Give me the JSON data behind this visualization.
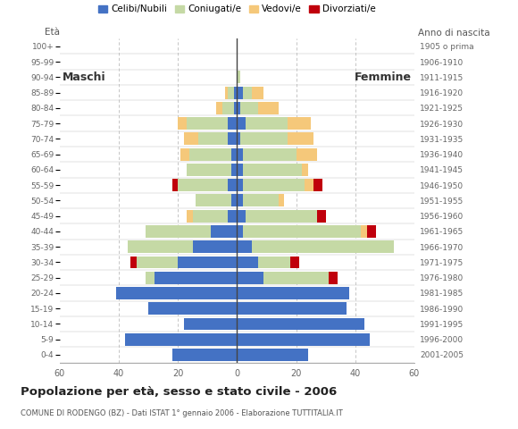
{
  "age_groups": [
    "0-4",
    "5-9",
    "10-14",
    "15-19",
    "20-24",
    "25-29",
    "30-34",
    "35-39",
    "40-44",
    "45-49",
    "50-54",
    "55-59",
    "60-64",
    "65-69",
    "70-74",
    "75-79",
    "80-84",
    "85-89",
    "90-94",
    "95-99",
    "100+"
  ],
  "birth_years": [
    "2001-2005",
    "1996-2000",
    "1991-1995",
    "1986-1990",
    "1981-1985",
    "1976-1980",
    "1971-1975",
    "1966-1970",
    "1961-1965",
    "1956-1960",
    "1951-1955",
    "1946-1950",
    "1941-1945",
    "1936-1940",
    "1931-1935",
    "1926-1930",
    "1921-1925",
    "1916-1920",
    "1911-1915",
    "1906-1910",
    "1905 o prima"
  ],
  "colors": {
    "celibe": "#4472C4",
    "coniugato": "#C5D9A5",
    "vedovo": "#F5C87A",
    "divorziato": "#C0000C"
  },
  "males": {
    "celibe": [
      22,
      38,
      18,
      30,
      41,
      28,
      20,
      15,
      9,
      3,
      2,
      3,
      2,
      2,
      3,
      3,
      1,
      1,
      0,
      0,
      0
    ],
    "coniugato": [
      0,
      0,
      0,
      0,
      0,
      3,
      14,
      22,
      22,
      12,
      12,
      17,
      15,
      14,
      10,
      14,
      4,
      2,
      0,
      0,
      0
    ],
    "vedovo": [
      0,
      0,
      0,
      0,
      0,
      0,
      0,
      0,
      0,
      2,
      0,
      0,
      0,
      3,
      5,
      3,
      2,
      1,
      0,
      0,
      0
    ],
    "divorziato": [
      0,
      0,
      0,
      0,
      0,
      0,
      2,
      0,
      0,
      0,
      0,
      2,
      0,
      0,
      0,
      0,
      0,
      0,
      0,
      0,
      0
    ]
  },
  "females": {
    "celibe": [
      24,
      45,
      43,
      37,
      38,
      9,
      7,
      5,
      2,
      3,
      2,
      2,
      2,
      2,
      1,
      3,
      1,
      2,
      0,
      0,
      0
    ],
    "coniugato": [
      0,
      0,
      0,
      0,
      0,
      22,
      11,
      48,
      40,
      24,
      12,
      21,
      20,
      18,
      16,
      14,
      6,
      3,
      1,
      0,
      0
    ],
    "vedovo": [
      0,
      0,
      0,
      0,
      0,
      0,
      0,
      0,
      2,
      0,
      2,
      3,
      2,
      7,
      9,
      8,
      7,
      4,
      0,
      0,
      0
    ],
    "divorziato": [
      0,
      0,
      0,
      0,
      0,
      3,
      3,
      0,
      3,
      3,
      0,
      3,
      0,
      0,
      0,
      0,
      0,
      0,
      0,
      0,
      0
    ]
  },
  "title": "Popolazione per età, sesso e stato civile - 2006",
  "subtitle": "COMUNE DI RODENGO (BZ) - Dati ISTAT 1° gennaio 2006 - Elaborazione TUTTITALIA.IT",
  "label_left": "Maschi",
  "label_right": "Femmine",
  "eta_label": "Età",
  "anno_label": "Anno di nascita",
  "xlim": 60,
  "bg_color": "#FFFFFF",
  "grid_color": "#BBBBBB",
  "legend_labels": [
    "Celibi/Nubili",
    "Coniugati/e",
    "Vedovi/e",
    "Divorziati/e"
  ]
}
